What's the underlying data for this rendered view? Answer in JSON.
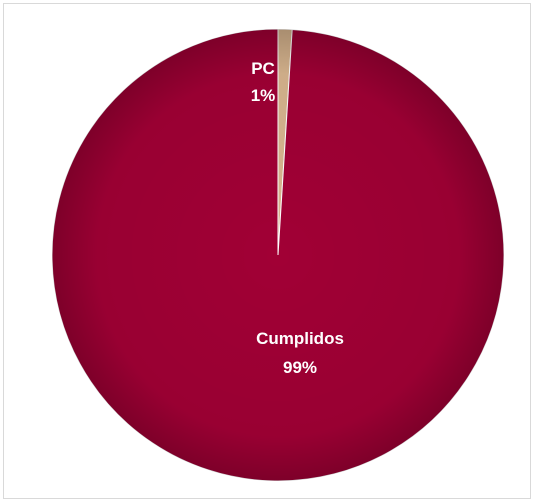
{
  "chart_data": {
    "type": "pie",
    "title": "",
    "slices": [
      {
        "label": "PC",
        "value": 1,
        "percent_label": "1%",
        "color": "#D8B58F"
      },
      {
        "label": "Cumplidos",
        "value": 99,
        "percent_label": "99%",
        "color": "#A10035"
      }
    ],
    "legend": "none"
  }
}
